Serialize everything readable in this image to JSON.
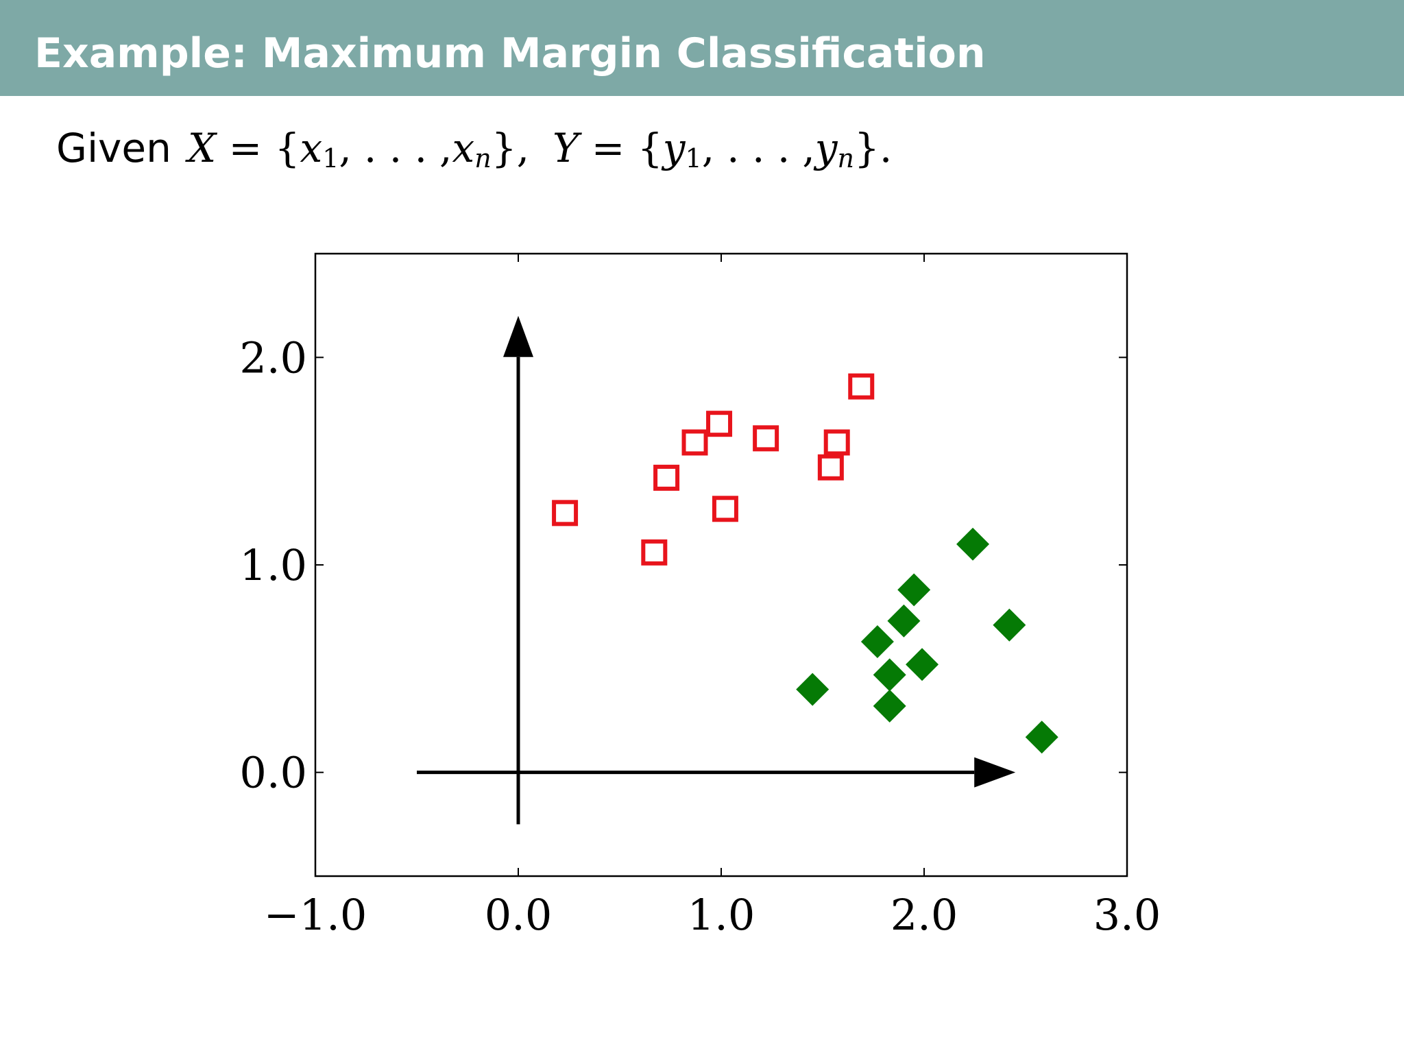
{
  "slide": {
    "title": "Example: Maximum Margin Classification",
    "given_word": "Given"
  },
  "math": {
    "X": "X",
    "Y": "Y",
    "x": "x",
    "y": "y",
    "sub1": "1",
    "subn": "n",
    "eq": "=",
    "lbrace": "{",
    "rbrace": "}",
    "comma": ",",
    "ellipsis": ". . .",
    "period": "."
  },
  "chart_data": {
    "type": "scatter",
    "xlim": [
      -1.0,
      3.0
    ],
    "ylim": [
      -0.5,
      2.5
    ],
    "x_ticks": [
      {
        "value": -1.0,
        "label": "−1.0"
      },
      {
        "value": 0.0,
        "label": "0.0"
      },
      {
        "value": 1.0,
        "label": "1.0"
      },
      {
        "value": 2.0,
        "label": "2.0"
      },
      {
        "value": 3.0,
        "label": "3.0"
      }
    ],
    "y_ticks": [
      {
        "value": 0.0,
        "label": "0.0"
      },
      {
        "value": 1.0,
        "label": "1.0"
      },
      {
        "value": 2.0,
        "label": "2.0"
      }
    ],
    "grid": false,
    "arrows": [
      {
        "from": [
          -0.5,
          0.0
        ],
        "to": [
          2.45,
          0.0
        ]
      },
      {
        "from": [
          0.0,
          -0.25
        ],
        "to": [
          0.0,
          2.2
        ]
      }
    ],
    "series": [
      {
        "marker": "square-open",
        "color": "#e8141c",
        "points": [
          [
            0.23,
            1.25
          ],
          [
            0.67,
            1.06
          ],
          [
            0.73,
            1.42
          ],
          [
            0.87,
            1.59
          ],
          [
            0.99,
            1.68
          ],
          [
            1.02,
            1.27
          ],
          [
            1.22,
            1.61
          ],
          [
            1.54,
            1.47
          ],
          [
            1.57,
            1.59
          ],
          [
            1.69,
            1.86
          ]
        ]
      },
      {
        "marker": "diamond-filled",
        "color": "#057a05",
        "points": [
          [
            1.45,
            0.4
          ],
          [
            1.77,
            0.63
          ],
          [
            1.83,
            0.47
          ],
          [
            1.83,
            0.32
          ],
          [
            1.9,
            0.73
          ],
          [
            1.95,
            0.88
          ],
          [
            1.99,
            0.52
          ],
          [
            2.24,
            1.1
          ],
          [
            2.42,
            0.71
          ],
          [
            2.58,
            0.17
          ]
        ]
      }
    ]
  }
}
